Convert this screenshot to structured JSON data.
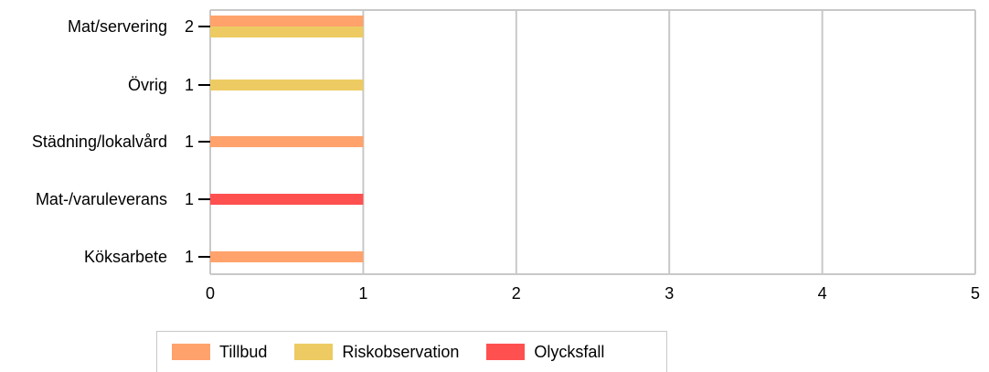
{
  "chart_data": {
    "type": "bar",
    "orientation": "horizontal",
    "categories": [
      "Mat/servering",
      "Övrig",
      "Städning/lokalvård",
      "Mat-/varuleverans",
      "Köksarbete"
    ],
    "totals": [
      "2",
      "1",
      "1",
      "1",
      "1"
    ],
    "series": [
      {
        "name": "Tillbud",
        "color": "#FFA26B",
        "values": [
          1,
          0,
          1,
          0,
          1
        ]
      },
      {
        "name": "Riskobservation",
        "color": "#EDCB62",
        "values": [
          1,
          1,
          0,
          0,
          0
        ]
      },
      {
        "name": "Olycksfall",
        "color": "#FF5050",
        "values": [
          0,
          0,
          0,
          1,
          0
        ]
      }
    ],
    "xlim": [
      0,
      5
    ],
    "xticks": [
      "0",
      "1",
      "2",
      "3",
      "4",
      "5"
    ],
    "grid": true,
    "legend_position": "bottom"
  }
}
